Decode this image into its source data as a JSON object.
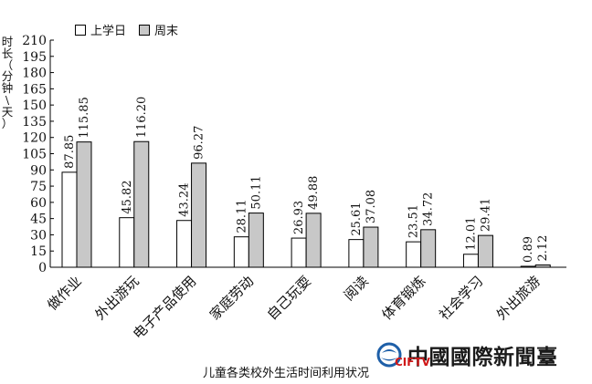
{
  "chart_data": {
    "type": "bar",
    "title": "",
    "caption": "儿童各类校外生活时间利用状况",
    "xlabel": "",
    "ylabel": "时长（分钟\\天）",
    "ylabel_chars": [
      "时",
      "长",
      "（",
      "分",
      "钟",
      "\\",
      "天",
      "）"
    ],
    "ylim": [
      0,
      210
    ],
    "yticks": [
      0,
      15,
      30,
      45,
      60,
      75,
      90,
      105,
      120,
      135,
      150,
      165,
      180,
      195,
      210
    ],
    "ytick_labels": [
      "0",
      "15",
      "30",
      "45",
      "60",
      "75",
      "90",
      "105",
      "120",
      "135",
      "150",
      "165",
      "180",
      "195",
      "210"
    ],
    "grid": false,
    "legend_position": "top-left",
    "categories": [
      "做作业",
      "外出游玩",
      "电子产品使用",
      "家庭劳动",
      "自己玩耍",
      "阅读",
      "体育锻炼",
      "社会学习",
      "外出旅游"
    ],
    "series": [
      {
        "name": "上学日",
        "color": "#ffffff",
        "values": [
          87.85,
          45.82,
          43.24,
          28.11,
          26.93,
          25.61,
          23.51,
          12.01,
          0.89
        ],
        "labels": [
          "87.85",
          "45.82",
          "43.24",
          "28.11",
          "26.93",
          "25.61",
          "23.51",
          "12.01",
          "0.89"
        ]
      },
      {
        "name": "周末",
        "color": "#c8c8c8",
        "values": [
          115.85,
          116.2,
          96.27,
          50.11,
          49.88,
          37.08,
          34.72,
          29.41,
          2.12
        ],
        "labels": [
          "115.85",
          "116.20",
          "96.27",
          "50.11",
          "49.88",
          "37.08",
          "34.72",
          "29.41",
          "2.12"
        ]
      }
    ]
  },
  "watermark": {
    "brand_text": "中國國際新聞臺",
    "sub_text": "CIFTV",
    "globe_icon": "globe-icon",
    "brand_color": "#1a1a1a",
    "sub_color": "#d01818",
    "globe_color": "#1e5fa8"
  }
}
